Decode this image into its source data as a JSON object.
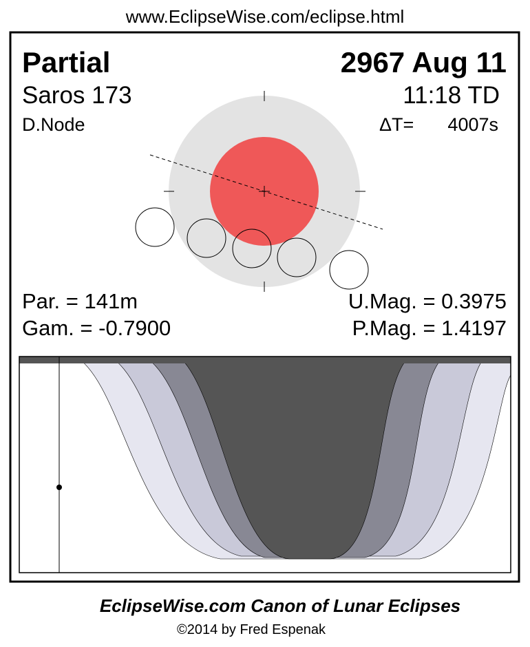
{
  "header": {
    "url": "www.EclipseWise.com/eclipse.html"
  },
  "eclipse": {
    "type": "Partial",
    "date": "2967 Aug 11",
    "saros": "Saros 173",
    "time": "11:18 TD",
    "node": "D.Node",
    "delta_t_label": "ΔT=",
    "delta_t": "4007s"
  },
  "parameters": {
    "par": "Par. = 141m",
    "gam": "Gam. = -0.7900",
    "umag": "U.Mag. = 0.3975",
    "pmag": "P.Mag. = 1.4197"
  },
  "footer": {
    "title": "EclipseWise.com Canon of Lunar Eclipses",
    "copyright": "©2014 by Fred Espenak"
  }
}
